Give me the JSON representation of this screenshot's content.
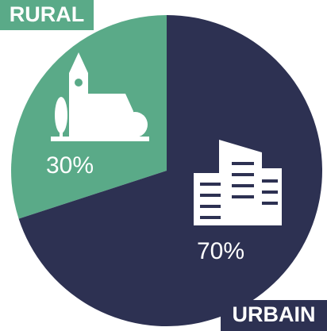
{
  "chart_data": {
    "type": "pie",
    "categories": [
      "RURAL",
      "URBAIN"
    ],
    "values": [
      30,
      70
    ],
    "value_labels": [
      "30%",
      "70%"
    ],
    "colors": [
      "#5aaa88",
      "#2d3152"
    ]
  }
}
